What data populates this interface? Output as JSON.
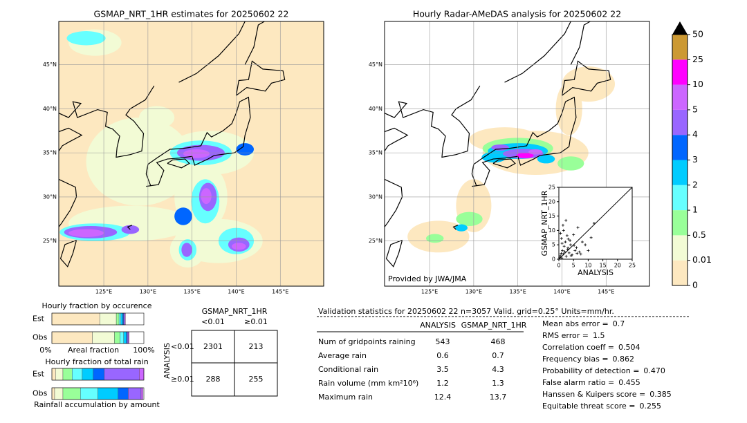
{
  "left_map": {
    "title": "GSMAP_NRT_1HR estimates for 20250602 22",
    "lat_labels": [
      "45°N",
      "40°N",
      "35°N",
      "30°N",
      "25°N"
    ],
    "lon_labels": [
      "125°E",
      "130°E",
      "135°E",
      "140°E",
      "145°E"
    ]
  },
  "right_map": {
    "title": "Hourly Radar-AMeDAS analysis for 20250602 22",
    "lat_labels": [
      "45°N",
      "40°N",
      "35°N",
      "30°N",
      "25°N"
    ],
    "lon_labels": [
      "125°E",
      "130°E",
      "135°E",
      "140°E",
      "145°E"
    ],
    "credit": "Provided by JWA/JMA"
  },
  "inset": {
    "type": "scatter",
    "xlabel": "ANALYSIS",
    "ylabel": "GSMAP_NRT_1HR",
    "xlim": [
      0,
      25
    ],
    "ylim": [
      0,
      25
    ],
    "xticks": [
      0,
      5,
      10,
      15,
      20,
      25
    ],
    "yticks": [
      0,
      5,
      10,
      15,
      20,
      25
    ],
    "x": [
      0.3,
      0.5,
      0.8,
      1,
      1.2,
      1.5,
      1.8,
      2,
      2.2,
      2.5,
      3,
      3.2,
      3.5,
      4,
      4.5,
      5,
      5.5,
      6,
      6.5,
      7,
      8,
      9,
      10,
      11,
      12,
      0.6,
      1.1,
      1.6,
      2.4,
      3.8,
      4.2,
      5.2,
      6.2,
      0.9,
      2.8,
      7.5,
      1.4,
      3.1
    ],
    "y": [
      0.5,
      1.2,
      2,
      0.4,
      3,
      1.8,
      4.5,
      2.6,
      6,
      1,
      3.5,
      7,
      2.2,
      5,
      1.5,
      8.5,
      3,
      4,
      11,
      2.5,
      6,
      5,
      3,
      7.5,
      12.5,
      9,
      5.5,
      10,
      13.5,
      6.5,
      1.2,
      4.8,
      2,
      7.2,
      8.2,
      1.8,
      11.8,
      3.9
    ]
  },
  "colorbar": {
    "ticks": [
      0,
      0.01,
      0.5,
      1,
      2,
      3,
      4,
      5,
      10,
      25,
      50
    ],
    "colors": [
      "#fde8c0",
      "#f2fbd5",
      "#99ff99",
      "#66ffff",
      "#00ccff",
      "#0066ff",
      "#9966ff",
      "#cc66ff",
      "#ff00ff",
      "#cc9933"
    ],
    "over_color": "#000000"
  },
  "occurrence": {
    "title": "Hourly fraction by occurence",
    "rows": [
      "Est",
      "Obs"
    ],
    "axis_left": "0%",
    "axis_mid": "Areal fraction",
    "axis_right": "100%",
    "segments": [
      [
        52,
        18,
        3,
        2,
        2,
        1,
        1,
        1
      ],
      [
        44,
        24,
        6,
        4,
        3,
        1,
        1,
        1
      ]
    ]
  },
  "total": {
    "title": "Hourly fraction of total rain",
    "rows": [
      "Est",
      "Obs"
    ],
    "footer": "Rainfall accumulation by amount",
    "segments": [
      [
        4,
        8,
        10,
        11,
        12,
        12,
        38,
        5
      ],
      [
        3,
        9,
        19,
        19,
        22,
        11,
        14,
        2
      ]
    ]
  },
  "contingency": {
    "title": "GSMAP_NRT_1HR",
    "cols": [
      "<0.01",
      "≥0.01"
    ],
    "side": "ANALYSIS",
    "rows": [
      "<0.01",
      "≥0.01"
    ],
    "cells": [
      [
        2301,
        213
      ],
      [
        288,
        255
      ]
    ]
  },
  "stats": {
    "header": "Validation statistics for 20250602 22  n=3057 Valid. grid=0.25° Units=mm/hr.",
    "cols": [
      "ANALYSIS",
      "GSMAP_NRT_1HR"
    ],
    "rows": [
      [
        "Num of gridpoints raining",
        543,
        468
      ],
      [
        "Average rain",
        0.6,
        0.7
      ],
      [
        "Conditional rain",
        3.5,
        4.3
      ],
      [
        "Rain volume (mm km²10⁶)",
        1.2,
        1.3
      ],
      [
        "Maximum rain",
        12.4,
        13.7
      ]
    ],
    "scores": [
      [
        "Mean abs error =",
        "0.7"
      ],
      [
        "RMS error =",
        "1.5"
      ],
      [
        "Correlation coeff =",
        "0.504"
      ],
      [
        "Frequency bias =",
        "0.862"
      ],
      [
        "Probability of detection =",
        "0.470"
      ],
      [
        "False alarm ratio =",
        "0.455"
      ],
      [
        "Hanssen & Kuipers score =",
        "0.385"
      ],
      [
        "Equitable threat score =",
        "0.255"
      ]
    ]
  }
}
